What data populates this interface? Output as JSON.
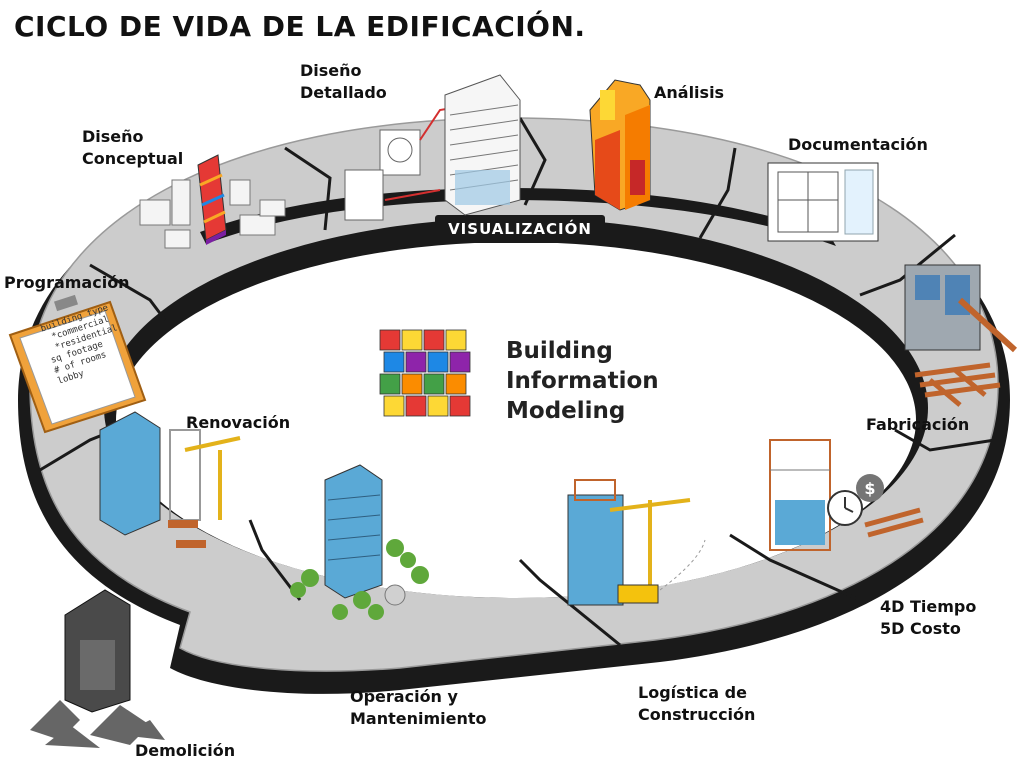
{
  "title": "CICLO DE VIDA DE LA EDIFICACIÓN.",
  "ring_label": "VISUALIZACIÓN",
  "center": {
    "lines": [
      "Building",
      "Information",
      "Modeling"
    ],
    "cube_colors": [
      "#e53935",
      "#1e88e5",
      "#43a047",
      "#fdd835",
      "#8e24aa",
      "#fb8c00"
    ]
  },
  "stages": [
    {
      "key": "diseno-conceptual",
      "lines": [
        "Diseño",
        "Conceptual"
      ]
    },
    {
      "key": "diseno-detallado",
      "lines": [
        "Diseño",
        "Detallado"
      ]
    },
    {
      "key": "analisis",
      "lines": [
        "Análisis"
      ]
    },
    {
      "key": "documentacion",
      "lines": [
        "Documentación"
      ]
    },
    {
      "key": "fabricacion",
      "lines": [
        "Fabricación"
      ]
    },
    {
      "key": "tiempo-costo",
      "lines": [
        "4D Tiempo",
        "5D Costo"
      ]
    },
    {
      "key": "logistica",
      "lines": [
        "Logística de",
        "Construcción"
      ]
    },
    {
      "key": "operacion",
      "lines": [
        "Operación y",
        "Mantenimiento"
      ]
    },
    {
      "key": "demolicion",
      "lines": [
        "Demolición"
      ]
    },
    {
      "key": "renovacion",
      "lines": [
        "Renovación"
      ]
    },
    {
      "key": "programacion",
      "lines": [
        "Programación"
      ]
    }
  ],
  "clipboard_lines": [
    "building type",
    "*commercial",
    "*residential",
    "sq footage",
    "# of rooms",
    "lobby"
  ],
  "colors": {
    "ring_top": "#cfcfcf",
    "ring_edge": "#1a1a1a",
    "glass": "#5aa9d6",
    "crane": "#e3b21a",
    "clipboard": "#f0a23b"
  }
}
